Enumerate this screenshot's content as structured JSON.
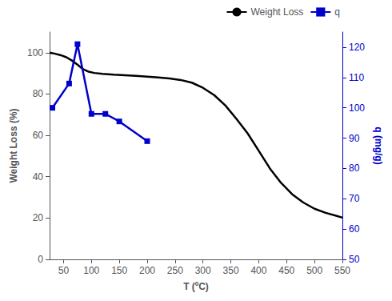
{
  "chart_data": {
    "type": "line",
    "xlabel": "T (ºC)",
    "ylabel": "Weight Loss (%)",
    "y2label": "q (mg/g)",
    "xlim": [
      25,
      550
    ],
    "xticks": [
      50,
      100,
      150,
      200,
      250,
      300,
      350,
      400,
      450,
      500,
      550
    ],
    "ylim": [
      0,
      110
    ],
    "yticks": [
      0,
      20,
      40,
      60,
      80,
      100
    ],
    "y2lim": [
      50,
      125
    ],
    "y2ticks": [
      50,
      60,
      70,
      80,
      90,
      100,
      110,
      120
    ],
    "grid": false,
    "legend": "upper right",
    "series": [
      {
        "name": "Weight Loss",
        "color": "#000000",
        "marker": "none",
        "x": [
          25,
          35,
          45,
          55,
          65,
          75,
          85,
          95,
          105,
          120,
          140,
          160,
          180,
          200,
          220,
          240,
          260,
          280,
          300,
          320,
          340,
          360,
          380,
          400,
          420,
          440,
          460,
          480,
          500,
          520,
          540,
          550
        ],
        "values": [
          100,
          99.5,
          98.8,
          97.8,
          96.2,
          94.2,
          92.0,
          90.8,
          90.2,
          89.8,
          89.4,
          89.1,
          88.8,
          88.4,
          88.0,
          87.5,
          86.8,
          85.5,
          83.0,
          79.5,
          74.5,
          68.0,
          61.0,
          52.5,
          44.0,
          37.0,
          31.5,
          27.5,
          24.5,
          22.5,
          21.0,
          20.2
        ]
      },
      {
        "name": "q",
        "color": "#0000cc",
        "marker": "square",
        "axis": "y2",
        "x": [
          30,
          60,
          75,
          100,
          125,
          150,
          200
        ],
        "values": [
          100,
          108,
          121,
          98,
          98,
          95.5,
          89
        ]
      }
    ]
  }
}
